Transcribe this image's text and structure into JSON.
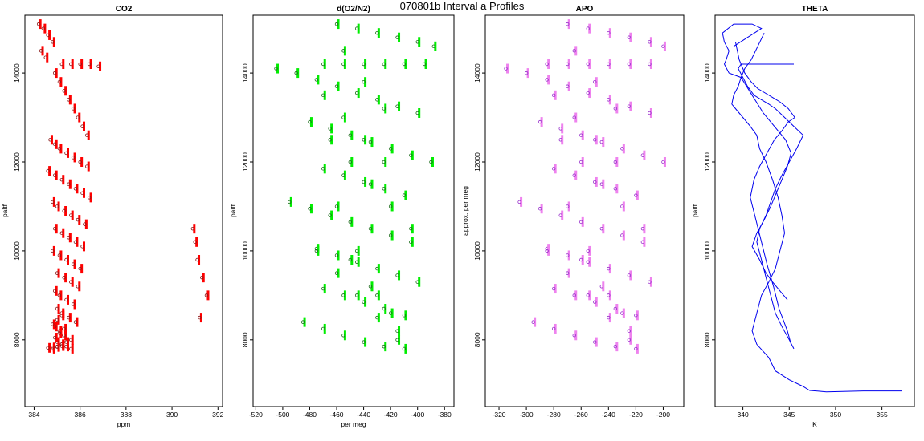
{
  "page": {
    "title": "070801b   Interval a Profiles"
  },
  "chart_data": [
    {
      "type": "scatter",
      "title": "CO2",
      "xlabel": "ppm",
      "ylabel": "paltf",
      "xlim": [
        383.6,
        392.2
      ],
      "ylim": [
        6500,
        15300
      ],
      "xticks": [
        384,
        386,
        388,
        390,
        392
      ],
      "yticks": [
        8000,
        10000,
        12000,
        14000
      ],
      "xtick_labels": [
        "384",
        "386",
        "388",
        "390",
        "392"
      ],
      "ytick_labels": [
        "8000",
        "10000",
        "12000",
        "14000"
      ],
      "color_points": "#8b1a1a",
      "color_bars": "#ff0000",
      "grid": false,
      "series": [
        {
          "x": [
            384.2,
            384.4,
            384.6,
            384.8,
            384.3,
            384.5,
            385.2,
            385.6,
            386.0,
            386.4,
            386.8,
            384.9,
            385.1,
            385.3,
            385.5,
            385.7,
            385.9,
            386.1,
            386.3,
            384.7,
            384.9,
            385.1,
            385.4,
            385.7,
            386.0,
            386.3,
            384.6,
            384.9,
            385.2,
            385.5,
            385.8,
            386.1,
            386.4,
            384.8,
            385.0,
            385.3,
            385.6,
            385.9,
            386.2,
            384.9,
            385.2,
            385.5,
            385.8,
            386.1,
            384.8,
            385.1,
            385.4,
            385.7,
            386.0,
            385.0,
            385.3,
            385.6,
            385.9,
            384.9,
            385.1,
            385.4,
            385.7,
            385.0,
            385.2,
            385.5,
            385.8,
            384.9,
            385.1,
            385.3,
            385.6,
            385.0,
            385.2,
            385.4,
            385.6,
            384.8,
            385.0,
            385.2,
            385.4,
            384.9,
            385.1,
            385.3,
            384.8,
            385.0,
            385.2,
            384.6,
            384.8,
            385.0,
            385.2,
            390.9,
            391.0,
            391.1,
            391.3,
            391.5,
            391.2
          ],
          "y": [
            15100,
            15000,
            14850,
            14700,
            14500,
            14350,
            14200,
            14200,
            14200,
            14200,
            14150,
            14000,
            13800,
            13600,
            13400,
            13200,
            13000,
            12800,
            12600,
            12500,
            12400,
            12300,
            12200,
            12100,
            12000,
            11900,
            11800,
            11700,
            11600,
            11500,
            11400,
            11300,
            11200,
            11100,
            11000,
            10900,
            10800,
            10700,
            10600,
            10500,
            10400,
            10300,
            10200,
            10100,
            10000,
            9900,
            9800,
            9700,
            9600,
            9500,
            9400,
            9300,
            9200,
            9100,
            9000,
            8900,
            8800,
            8700,
            8600,
            8500,
            8400,
            8300,
            8200,
            8100,
            8000,
            7950,
            7900,
            7850,
            7800,
            7800,
            7850,
            7900,
            7950,
            8050,
            8150,
            8250,
            8350,
            8450,
            8550,
            7820,
            7830,
            7840,
            7860,
            10500,
            10200,
            9800,
            9400,
            9000,
            8500
          ]
        }
      ]
    },
    {
      "type": "scatter",
      "title": "d(O2/N2)",
      "xlabel": "per meg",
      "ylabel": "paltf",
      "xlim": [
        -522,
        -373
      ],
      "ylim": [
        6500,
        15300
      ],
      "xticks": [
        -520,
        -500,
        -480,
        -460,
        -440,
        -420,
        -400,
        -380
      ],
      "yticks": [
        8000,
        10000,
        12000,
        14000
      ],
      "xtick_labels": [
        "-520",
        "-500",
        "-480",
        "-460",
        "-440",
        "-420",
        "-400",
        "-380"
      ],
      "ytick_labels": [
        "8000",
        "10000",
        "12000",
        "14000"
      ],
      "color_points": "#1a6b1a",
      "color_bars": "#00ee00",
      "grid": false,
      "series": [
        {
          "x": [
            -460,
            -445,
            -430,
            -415,
            -400,
            -388,
            -470,
            -455,
            -440,
            -425,
            -410,
            -395,
            -505,
            -490,
            -475,
            -460,
            -445,
            -430,
            -415,
            -400,
            -480,
            -465,
            -450,
            -435,
            -420,
            -405,
            -390,
            -470,
            -455,
            -440,
            -425,
            -410,
            -495,
            -480,
            -465,
            -450,
            -435,
            -420,
            -405,
            -475,
            -460,
            -445,
            -430,
            -415,
            -400,
            -470,
            -455,
            -440,
            -425,
            -410,
            -485,
            -470,
            -455,
            -440,
            -425,
            -410,
            -465,
            -450,
            -435,
            -420,
            -405,
            -475,
            -460,
            -445,
            -430,
            -415,
            -470,
            -455,
            -440,
            -425,
            -460,
            -445,
            -430,
            -415,
            -455,
            -440,
            -425,
            -450,
            -435,
            -420
          ],
          "y": [
            15100,
            15000,
            14900,
            14800,
            14700,
            14600,
            14200,
            14200,
            14200,
            14200,
            14200,
            14200,
            14100,
            14000,
            13850,
            13700,
            13550,
            13400,
            13250,
            13100,
            12900,
            12750,
            12600,
            12450,
            12300,
            12150,
            12000,
            11850,
            11700,
            11550,
            11400,
            11250,
            11100,
            10950,
            10800,
            10650,
            10500,
            10350,
            10200,
            10050,
            9900,
            9750,
            9600,
            9450,
            9300,
            9150,
            9000,
            8850,
            8700,
            8550,
            8400,
            8250,
            8100,
            7950,
            7850,
            7800,
            12500,
            12000,
            11500,
            11000,
            10500,
            10000,
            9500,
            9000,
            8500,
            8000,
            13500,
            13000,
            12500,
            12000,
            11000,
            10000,
            9000,
            8200,
            14500,
            13800,
            13200,
            9800,
            9200,
            8600
          ]
        }
      ]
    },
    {
      "type": "scatter",
      "title": "APO",
      "xlabel": "",
      "ylabel": "approx. per meg",
      "xlim": [
        -330,
        -185
      ],
      "ylim": [
        6500,
        15300
      ],
      "xticks": [
        -320,
        -300,
        -280,
        -260,
        -240,
        -220,
        -200
      ],
      "yticks": [
        8000,
        10000,
        12000,
        14000
      ],
      "xtick_labels": [
        "-320",
        "-300",
        "-280",
        "-260",
        "-240",
        "-220",
        "-200"
      ],
      "ytick_labels": [
        "8000",
        "10000",
        "12000",
        "14000"
      ],
      "color_points": "#9932cc",
      "color_bars": "#ee82ee",
      "grid": false,
      "series": [
        {
          "x": [
            -270,
            -255,
            -240,
            -225,
            -210,
            -200,
            -285,
            -270,
            -255,
            -240,
            -225,
            -210,
            -315,
            -300,
            -285,
            -270,
            -255,
            -240,
            -225,
            -210,
            -290,
            -275,
            -260,
            -245,
            -230,
            -215,
            -200,
            -280,
            -265,
            -250,
            -235,
            -220,
            -305,
            -290,
            -275,
            -260,
            -245,
            -230,
            -215,
            -285,
            -270,
            -255,
            -240,
            -225,
            -210,
            -280,
            -265,
            -250,
            -235,
            -220,
            -295,
            -280,
            -265,
            -250,
            -235,
            -220,
            -275,
            -260,
            -245,
            -230,
            -215,
            -285,
            -270,
            -255,
            -240,
            -225,
            -280,
            -265,
            -250,
            -235,
            -270,
            -255,
            -240,
            -225,
            -265,
            -250,
            -235,
            -260,
            -245,
            -230
          ],
          "y": [
            15100,
            15000,
            14900,
            14800,
            14700,
            14600,
            14200,
            14200,
            14200,
            14200,
            14200,
            14200,
            14100,
            14000,
            13850,
            13700,
            13550,
            13400,
            13250,
            13100,
            12900,
            12750,
            12600,
            12450,
            12300,
            12150,
            12000,
            11850,
            11700,
            11550,
            11400,
            11250,
            11100,
            10950,
            10800,
            10650,
            10500,
            10350,
            10200,
            10050,
            9900,
            9750,
            9600,
            9450,
            9300,
            9150,
            9000,
            8850,
            8700,
            8550,
            8400,
            8250,
            8100,
            7950,
            7850,
            7800,
            12500,
            12000,
            11500,
            11000,
            10500,
            10000,
            9500,
            9000,
            8500,
            8000,
            13500,
            13000,
            12500,
            12000,
            11000,
            10000,
            9000,
            8200,
            14500,
            13800,
            13200,
            9800,
            9200,
            8600
          ]
        }
      ]
    },
    {
      "type": "line",
      "title": "THETA",
      "xlabel": "K",
      "ylabel": "paltf",
      "xlim": [
        337,
        358.5
      ],
      "ylim": [
        6500,
        15300
      ],
      "xticks": [
        340,
        345,
        350,
        355
      ],
      "yticks": [
        8000,
        10000,
        12000,
        14000
      ],
      "xtick_labels": [
        "340",
        "345",
        "350",
        "355"
      ],
      "ytick_labels": [
        "8000",
        "10000",
        "12000",
        "14000"
      ],
      "color_line": "#0000ee",
      "grid": false,
      "series": [
        {
          "x": [
            357.2,
            353.0,
            349.0,
            347.2,
            346.5,
            345.0,
            343.5,
            342.8,
            341.5,
            341.0,
            341.5,
            342.0,
            342.8,
            343.5,
            344.0,
            344.5,
            344.2,
            343.8,
            343.2,
            342.5,
            341.8,
            341.5,
            340.8,
            340.0,
            339.2,
            338.8,
            339.0,
            339.5,
            339.8,
            338.5,
            338.0,
            338.2,
            338.5,
            338.0,
            337.8,
            339.0,
            341.0,
            342.0,
            340.5,
            339.0
          ],
          "y": [
            6850,
            6850,
            6830,
            6860,
            6950,
            7100,
            7300,
            7600,
            7900,
            8200,
            8600,
            9000,
            9300,
            9600,
            10000,
            10400,
            10800,
            11200,
            11600,
            12000,
            12300,
            12600,
            12800,
            13000,
            13200,
            13300,
            13500,
            13700,
            13900,
            14000,
            14200,
            14300,
            14500,
            14700,
            14900,
            15100,
            15100,
            15000,
            14800,
            14600
          ]
        },
        {
          "x": [
            345.5,
            345.0,
            344.2,
            343.5,
            343.0,
            342.5,
            342.0,
            341.5,
            341.8,
            342.5,
            343.0,
            343.5,
            344.2,
            345.0,
            345.8,
            346.5,
            345.5,
            344.5,
            343.5,
            342.8,
            342.0,
            341.2,
            340.5,
            340.0,
            339.5,
            339.8,
            340.5,
            341.2,
            342.0,
            343.0,
            344.0,
            345.0,
            345.5
          ],
          "y": [
            7800,
            8000,
            8300,
            8600,
            9000,
            9400,
            9800,
            10200,
            10500,
            10800,
            11100,
            11400,
            11700,
            12000,
            12300,
            12600,
            12800,
            13000,
            13200,
            13300,
            13400,
            13500,
            13700,
            13900,
            14100,
            14200,
            14200,
            14200,
            14200,
            14200,
            14200,
            14200,
            14200
          ]
        },
        {
          "x": [
            344.8,
            344.0,
            343.2,
            342.5,
            341.8,
            341.0,
            341.5,
            342.3,
            343.0,
            343.6,
            344.2,
            344.8,
            345.2,
            344.6,
            343.8,
            343.0,
            342.2,
            341.6,
            341.0,
            340.4,
            339.8,
            340.2,
            340.9,
            341.6,
            342.3
          ],
          "y": [
            8900,
            9100,
            9300,
            9500,
            9800,
            10100,
            10400,
            10700,
            11000,
            11300,
            11600,
            11900,
            12200,
            12500,
            12700,
            12900,
            13100,
            13300,
            13500,
            13700,
            13900,
            14100,
            14300,
            14600,
            14900
          ]
        },
        {
          "x": [
            345.2,
            344.8,
            343.9,
            343.3,
            342.6,
            342.0,
            341.4,
            340.8,
            341.2,
            341.8,
            342.6,
            343.4,
            344.2,
            344.9,
            345.6,
            344.9,
            344.0,
            343.2,
            342.4,
            341.6,
            340.9,
            340.2,
            339.6,
            339.2
          ],
          "y": [
            7900,
            8200,
            8700,
            9200,
            9700,
            10200,
            10700,
            11200,
            11600,
            11900,
            12200,
            12500,
            12700,
            12900,
            13000,
            13200,
            13350,
            13450,
            13550,
            13650,
            13800,
            14000,
            14300,
            14700
          ]
        }
      ]
    }
  ]
}
